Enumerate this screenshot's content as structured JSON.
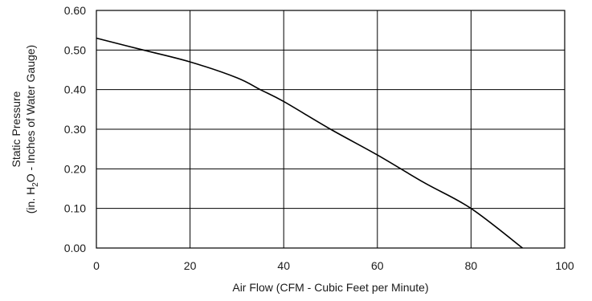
{
  "chart_data": {
    "type": "line",
    "xlabel": "Air Flow  (CFM - Cubic Feet per Minute)",
    "ylabel": {
      "line1": "Static Pressure",
      "line2_prefix": "(in. H",
      "line2_sub": "2",
      "line2_suffix": "O - Inches of Water Gauge)"
    },
    "xlim": [
      0,
      100
    ],
    "ylim": [
      0,
      0.6
    ],
    "x_ticks": [
      0,
      20,
      40,
      60,
      80,
      100
    ],
    "x_tick_labels": [
      "0",
      "20",
      "40",
      "60",
      "80",
      "100"
    ],
    "y_ticks": [
      0,
      0.1,
      0.2,
      0.3,
      0.4,
      0.5,
      0.6
    ],
    "y_tick_labels": [
      "0.00",
      "0.10",
      "0.20",
      "0.30",
      "0.40",
      "0.50",
      "0.60"
    ],
    "grid": true,
    "series": [
      {
        "x": [
          0,
          10,
          20,
          30,
          35,
          40,
          50,
          60,
          70,
          80,
          91
        ],
        "y": [
          0.53,
          0.5,
          0.47,
          0.43,
          0.4,
          0.37,
          0.3,
          0.235,
          0.165,
          0.1,
          0.0
        ]
      }
    ],
    "colors": {
      "line": "#000000",
      "grid": "#000000"
    }
  }
}
